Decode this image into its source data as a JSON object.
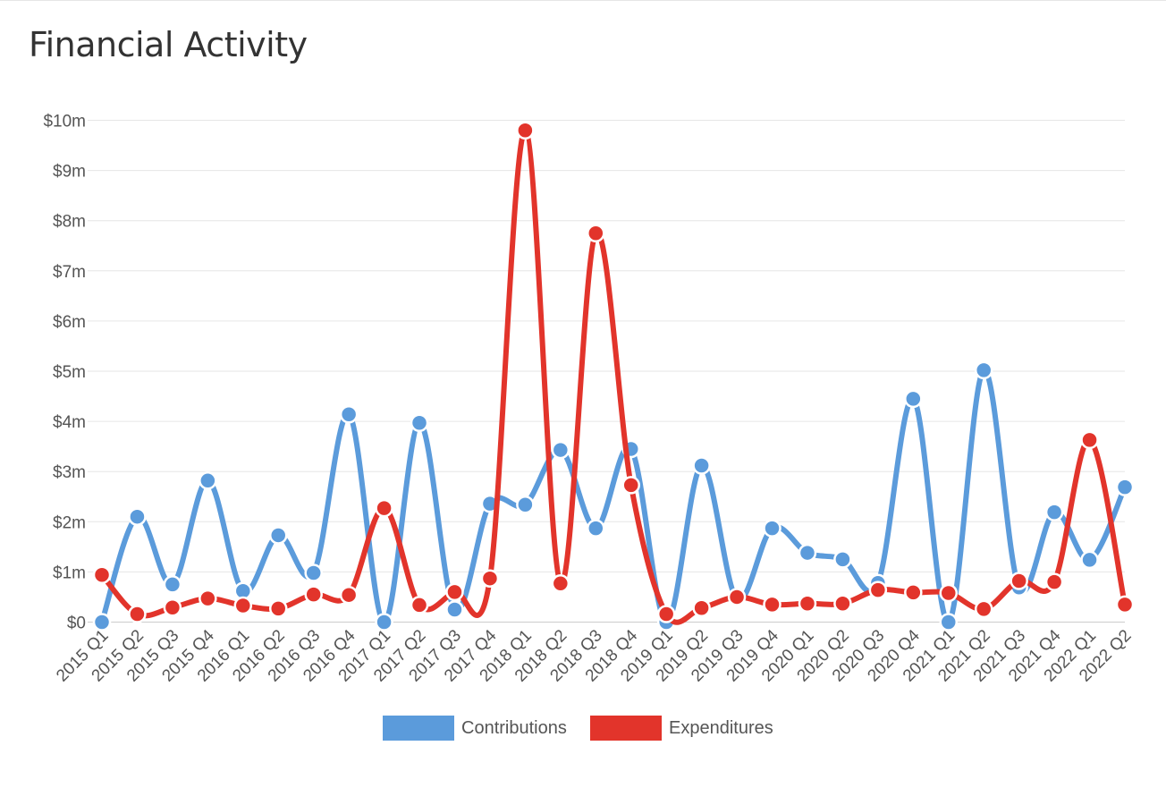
{
  "page": {
    "title": "Financial Activity"
  },
  "chart_data": {
    "type": "line",
    "title": "",
    "xlabel": "",
    "ylabel": "",
    "ylim": [
      0,
      10
    ],
    "y_ticks": [
      "$0",
      "$1m",
      "$2m",
      "$3m",
      "$4m",
      "$5m",
      "$6m",
      "$7m",
      "$8m",
      "$9m",
      "$10m"
    ],
    "y_unit": "millions of dollars",
    "grid": true,
    "legend_placement": "bottom-center",
    "categories": [
      "2015 Q1",
      "2015 Q2",
      "2015 Q3",
      "2015 Q4",
      "2016 Q1",
      "2016 Q2",
      "2016 Q3",
      "2016 Q4",
      "2017 Q1",
      "2017 Q2",
      "2017 Q3",
      "2017 Q4",
      "2018 Q1",
      "2018 Q2",
      "2018 Q3",
      "2018 Q4",
      "2019 Q1",
      "2019 Q2",
      "2019 Q3",
      "2019 Q4",
      "2020 Q1",
      "2020 Q2",
      "2020 Q3",
      "2020 Q4",
      "2021 Q1",
      "2021 Q2",
      "2021 Q3",
      "2021 Q4",
      "2022 Q1",
      "2022 Q2"
    ],
    "series": [
      {
        "name": "Contributions",
        "color": "#5b9bdb",
        "values": [
          0,
          2.1,
          0.75,
          2.82,
          0.62,
          1.73,
          0.98,
          4.14,
          0,
          3.97,
          0.25,
          2.36,
          2.34,
          3.43,
          1.87,
          3.45,
          0,
          3.12,
          0.46,
          1.87,
          1.38,
          1.25,
          0.78,
          4.45,
          0,
          5.02,
          0.69,
          2.19,
          1.24,
          2.69
        ]
      },
      {
        "name": "Expenditures",
        "color": "#e2342b",
        "values": [
          0.94,
          0.16,
          0.29,
          0.47,
          0.33,
          0.27,
          0.55,
          0.54,
          2.27,
          0.34,
          0.6,
          0.87,
          9.8,
          0.77,
          7.75,
          2.73,
          0.16,
          0.28,
          0.5,
          0.35,
          0.37,
          0.37,
          0.64,
          0.59,
          0.58,
          0.26,
          0.82,
          0.8,
          3.63,
          0.35
        ]
      }
    ]
  }
}
